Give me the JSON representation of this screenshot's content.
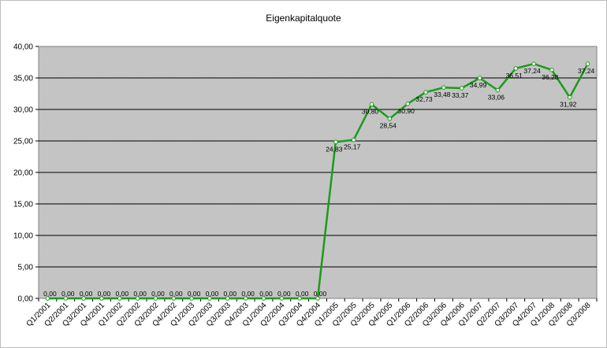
{
  "chart_data": {
    "type": "line",
    "title": "Eigenkapitalquote",
    "xlabel": "",
    "ylabel": "",
    "ylim": [
      0,
      40
    ],
    "y_ticks": [
      "0,00",
      "5,00",
      "10,00",
      "15,00",
      "20,00",
      "25,00",
      "30,00",
      "35,00",
      "40,00"
    ],
    "grid": "horizontal",
    "legend": "none",
    "line_color": "#1a9c1a",
    "plot_background": "#c8c8c8",
    "categories": [
      "Q1/2001",
      "Q2/2001",
      "Q3/2001",
      "Q4/2001",
      "Q1/2002",
      "Q2/2002",
      "Q3/2002",
      "Q4/2002",
      "Q1/2003",
      "Q2/2003",
      "Q3/2003",
      "Q4/2003",
      "Q1/2004",
      "Q2/2004",
      "Q3/2004",
      "Q4/2004",
      "Q1/2005",
      "Q2/2005",
      "Q3/2005",
      "Q4/2005",
      "Q1/2006",
      "Q2/2006",
      "Q3/2006",
      "Q4/2006",
      "Q1/2007",
      "Q2/2007",
      "Q3/2007",
      "Q4/2007",
      "Q1/2008",
      "Q2/2008",
      "Q3/2008"
    ],
    "series": [
      {
        "values": [
          0,
          0,
          0,
          0,
          0,
          0,
          0,
          0,
          0,
          0,
          0,
          0,
          0,
          0,
          0,
          0,
          24.83,
          25.17,
          30.8,
          28.54,
          30.9,
          32.73,
          33.48,
          33.37,
          34.99,
          33.06,
          36.51,
          37.24,
          36.28,
          31.92,
          37.24
        ],
        "labels": [
          "0,00",
          "0,00",
          "0,00",
          "0,00",
          "0,00",
          "0,00",
          "0,00",
          "0,00",
          "0,00",
          "0,00",
          "0,00",
          "0,00",
          "0,00",
          "0,00",
          "0,00",
          "0,00",
          "24,83",
          "25,17",
          "30,80",
          "28,54",
          "30,90",
          "32,73",
          "33,48",
          "33,37",
          "34,99",
          "33,06",
          "36,51",
          "37,24",
          "36,28",
          "31,92",
          "37,24"
        ]
      }
    ]
  }
}
